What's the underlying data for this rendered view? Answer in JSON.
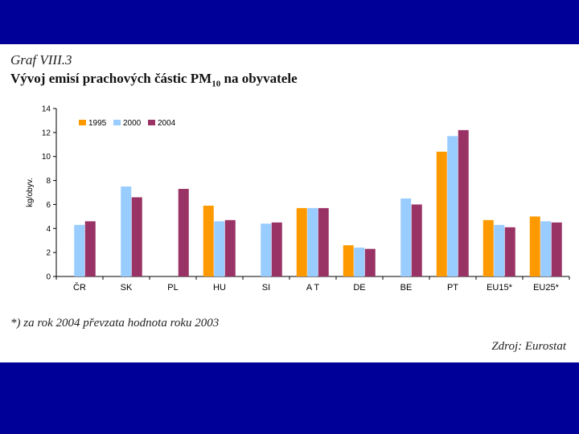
{
  "header": {
    "graf_label": "Graf VIII.3",
    "title_main": "Vývoj emisí prachových částic PM",
    "title_sub": "10",
    "title_tail": " na obyvatele"
  },
  "footer": {
    "note": "*) za rok 2004 převzata hodnota roku 2003",
    "source": "Zdroj: Eurostat"
  },
  "colors": {
    "background": "#000099",
    "s1995": "#FF9900",
    "s2000": "#99CCFF",
    "s2004": "#993366"
  },
  "chart_data": {
    "type": "bar",
    "title": "Vývoj emisí prachových částic PM10 na obyvatele",
    "xlabel": "",
    "ylabel": "kg/obyv.",
    "ylim": [
      0,
      14
    ],
    "yticks": [
      0,
      2,
      4,
      6,
      8,
      10,
      12,
      14
    ],
    "categories": [
      "ČR",
      "SK",
      "PL",
      "HU",
      "SI",
      "A T",
      "DE",
      "BE",
      "PT",
      "EU15*",
      "EU25*"
    ],
    "legend_position": "top-left",
    "series": [
      {
        "name": "1995",
        "color": "#FF9900",
        "values": [
          null,
          null,
          null,
          5.9,
          null,
          5.7,
          2.6,
          null,
          10.4,
          4.7,
          5.0
        ]
      },
      {
        "name": "2000",
        "color": "#99CCFF",
        "values": [
          4.3,
          7.5,
          null,
          4.6,
          4.4,
          5.7,
          2.4,
          6.5,
          11.7,
          4.3,
          4.6
        ]
      },
      {
        "name": "2004",
        "color": "#993366",
        "values": [
          4.6,
          6.6,
          7.3,
          4.7,
          4.5,
          5.7,
          2.3,
          6.0,
          12.2,
          4.1,
          4.5
        ]
      }
    ]
  }
}
